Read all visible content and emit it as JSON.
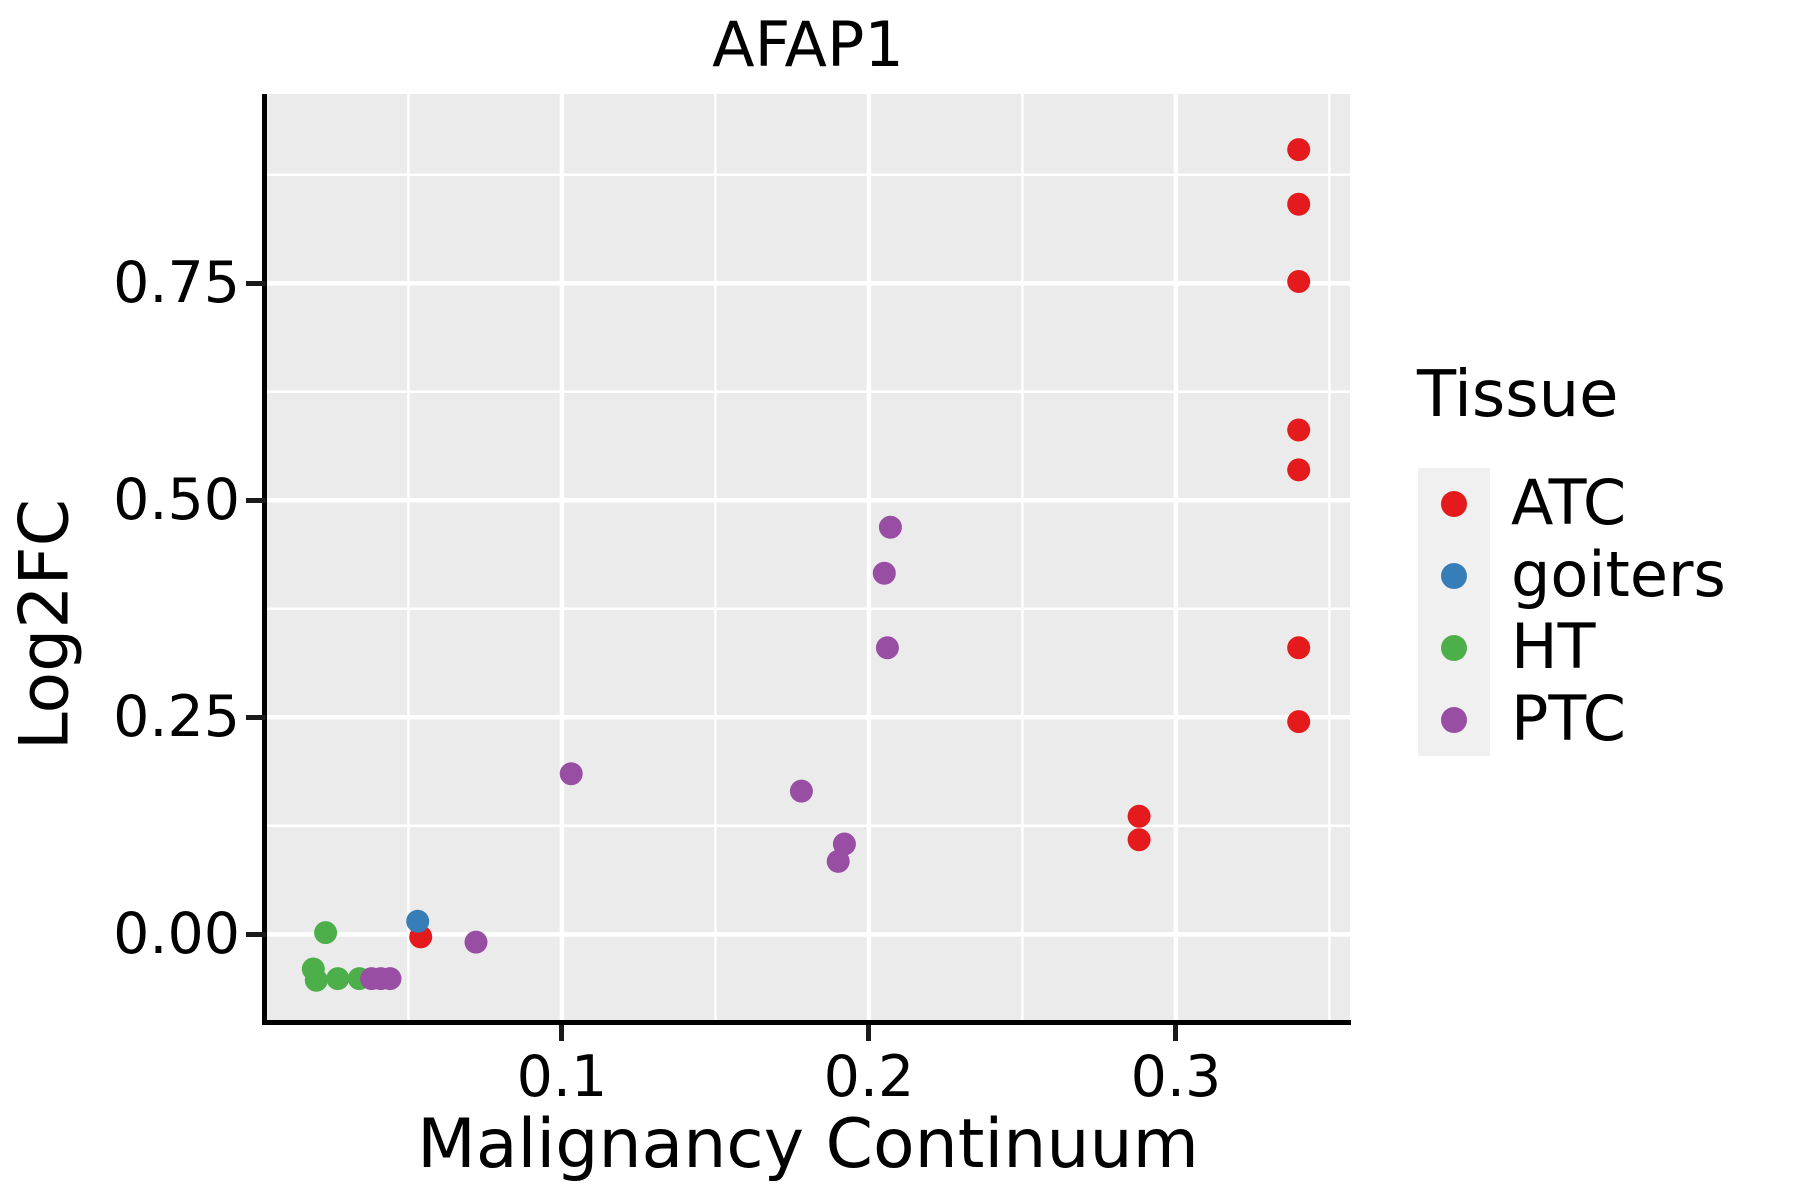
{
  "figure": {
    "title": "AFAP1",
    "x_axis": {
      "label": "Malignancy Continuum",
      "tick_labels": [
        "0.1",
        "0.2",
        "0.3"
      ],
      "tick_values": [
        0.1,
        0.2,
        0.3
      ],
      "minor_ticks": [
        0.05,
        0.15,
        0.25,
        0.35
      ]
    },
    "y_axis": {
      "label": "Log2FC",
      "tick_labels": [
        "0.00",
        "0.25",
        "0.50",
        "0.75"
      ],
      "tick_values": [
        0.0,
        0.25,
        0.5,
        0.75
      ],
      "minor_ticks": [
        0.125,
        0.375,
        0.625,
        0.875
      ]
    },
    "legend": {
      "title": "Tissue",
      "entries": [
        {
          "label": "ATC",
          "color": "#E41A1C"
        },
        {
          "label": "goiters",
          "color": "#377EB8"
        },
        {
          "label": "HT",
          "color": "#4DAF4A"
        },
        {
          "label": "PTC",
          "color": "#984EA3"
        }
      ]
    },
    "colors": {
      "panel_background": "#EBEBEB",
      "grid": "#FFFFFF",
      "axis": "#000000",
      "legend_key_background": "#F0F0F0"
    }
  },
  "chart_data": {
    "type": "scatter",
    "title": "AFAP1",
    "xlabel": "Malignancy Continuum",
    "ylabel": "Log2FC",
    "xlim": [
      0.0036,
      0.3567
    ],
    "ylim": [
      -0.101,
      0.968
    ],
    "grid": "major-minor",
    "legend_position": "right",
    "point_radius_px": 11.5,
    "series": [
      {
        "name": "ATC",
        "color": "#E41A1C",
        "points": [
          [
            0.34,
            0.904
          ],
          [
            0.34,
            0.841
          ],
          [
            0.34,
            0.752
          ],
          [
            0.34,
            0.581
          ],
          [
            0.34,
            0.535
          ],
          [
            0.34,
            0.33
          ],
          [
            0.34,
            0.245
          ],
          [
            0.288,
            0.136
          ],
          [
            0.288,
            0.109
          ],
          [
            0.054,
            -0.003
          ]
        ]
      },
      {
        "name": "goiters",
        "color": "#377EB8",
        "points": [
          [
            0.053,
            0.015
          ]
        ]
      },
      {
        "name": "HT",
        "color": "#4DAF4A",
        "points": [
          [
            0.023,
            0.002
          ],
          [
            0.019,
            -0.04
          ],
          [
            0.02,
            -0.053
          ],
          [
            0.027,
            -0.051
          ],
          [
            0.034,
            -0.051
          ]
        ]
      },
      {
        "name": "PTC",
        "color": "#984EA3",
        "points": [
          [
            0.207,
            0.469
          ],
          [
            0.205,
            0.416
          ],
          [
            0.206,
            0.33
          ],
          [
            0.178,
            0.165
          ],
          [
            0.103,
            0.185
          ],
          [
            0.192,
            0.104
          ],
          [
            0.19,
            0.084
          ],
          [
            0.072,
            -0.009
          ],
          [
            0.038,
            -0.051
          ],
          [
            0.041,
            -0.051
          ],
          [
            0.044,
            -0.051
          ]
        ]
      }
    ]
  }
}
